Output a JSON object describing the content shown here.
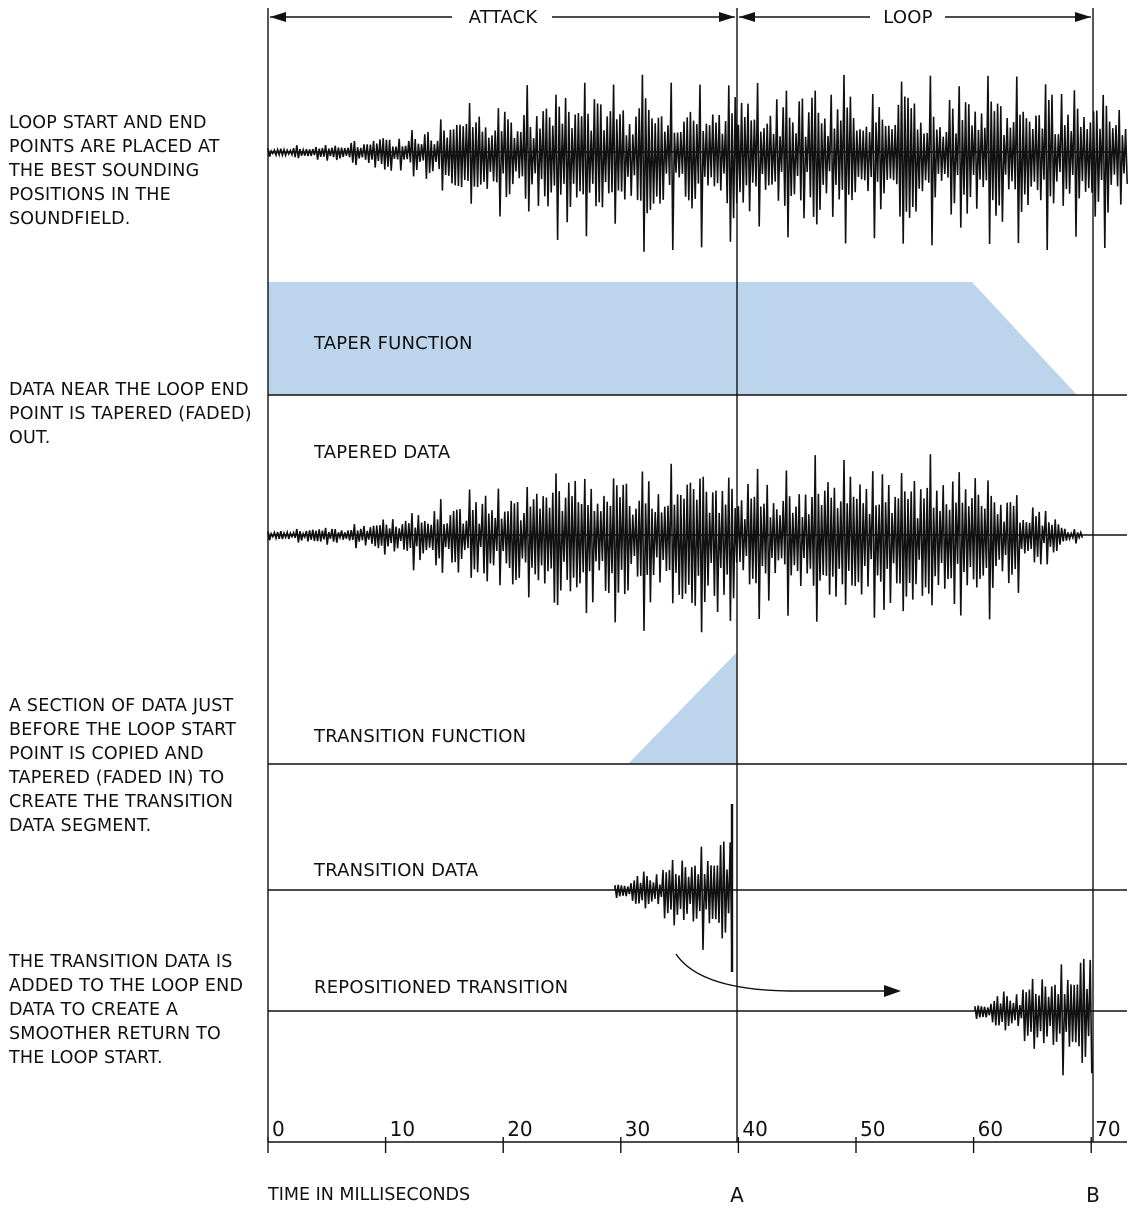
{
  "header": {
    "attack_label": "ATTACK",
    "loop_label": "LOOP"
  },
  "notes": [
    "LOOP START AND END POINTS ARE PLACED AT THE BEST SOUNDING POSITIONS IN THE SOUNDFIELD.",
    "DATA NEAR THE LOOP END POINT IS TAPERED (FADED) OUT.",
    "A SECTION OF DATA JUST BEFORE THE LOOP START POINT IS COPIED AND TAPERED (FADED IN) TO CREATE THE TRANSITION DATA SEGMENT.",
    "THE TRANSITION DATA IS ADDED TO THE LOOP END DATA TO CREATE A SMOOTHER RETURN TO THE LOOP START."
  ],
  "rows": {
    "taper_function": "TAPER FUNCTION",
    "tapered_data": "TAPERED DATA",
    "transition_function": "TRANSITION FUNCTION",
    "transition_data": "TRANSITION DATA",
    "repositioned_transition": "REPOSITIONED TRANSITION"
  },
  "axis": {
    "title": "TIME IN MILLISECONDS",
    "ticks": [
      "0",
      "10",
      "20",
      "30",
      "40",
      "50",
      "60",
      "70"
    ],
    "marker_a": "A",
    "marker_b": "B"
  },
  "colors": {
    "fill_blue": "#bdd5ec",
    "ink": "#111111"
  }
}
